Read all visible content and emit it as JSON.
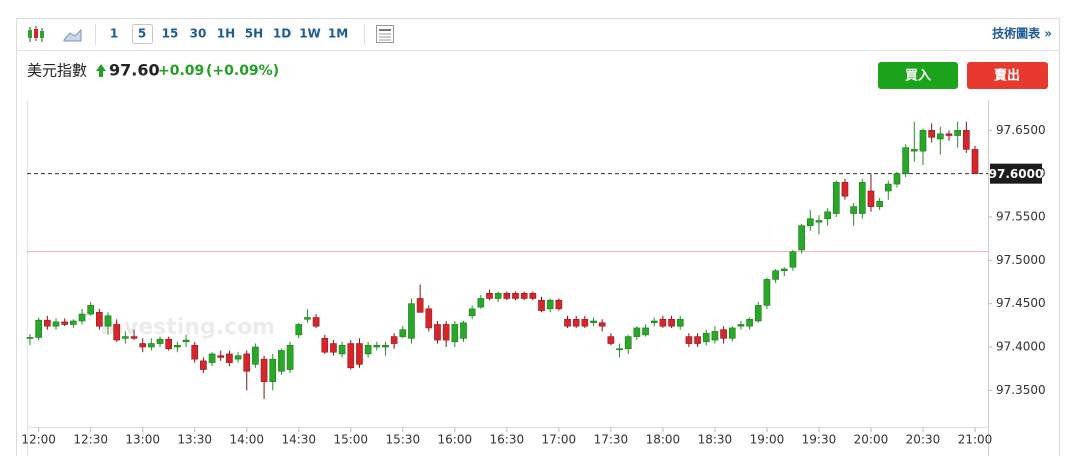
{
  "toolbar": {
    "intervals": [
      "1",
      "5",
      "15",
      "30",
      "1H",
      "5H",
      "1D",
      "1W",
      "1M"
    ],
    "selected_interval": "5",
    "link": "技術圖表 »"
  },
  "header": {
    "name": "美元指數",
    "price": "97.60",
    "change": "+0.09",
    "change_percent": "(+0.09%)"
  },
  "buttons": {
    "buy": "買入",
    "sell": "賣出"
  },
  "chart_data": {
    "type": "candlestick",
    "watermark": "Investing.com",
    "up_color": "#27a827",
    "down_color": "#d7262b",
    "ylim": [
      97.31,
      97.685
    ],
    "yticks": [
      {
        "value": 97.35,
        "label": "97.3500"
      },
      {
        "value": 97.4,
        "label": "97.4000"
      },
      {
        "value": 97.45,
        "label": "97.4500"
      },
      {
        "value": 97.5,
        "label": "97.5000"
      },
      {
        "value": 97.55,
        "label": "97.5500"
      },
      {
        "value": 97.6,
        "label": "97.6000"
      },
      {
        "value": 97.65,
        "label": "97.6500"
      }
    ],
    "current_price": {
      "value": 97.6,
      "label": "97.6000"
    },
    "reference_line": 97.51,
    "grid": false,
    "xticks": [
      "12:00",
      "12:30",
      "13:00",
      "13:30",
      "14:00",
      "14:30",
      "15:00",
      "15:30",
      "16:00",
      "16:30",
      "17:00",
      "17:30",
      "18:00",
      "18:30",
      "19:00",
      "19:30",
      "20:00",
      "20:30",
      "21:00"
    ],
    "x": [
      "11:55",
      "12:00",
      "12:05",
      "12:10",
      "12:15",
      "12:20",
      "12:25",
      "12:30",
      "12:35",
      "12:40",
      "12:45",
      "12:50",
      "12:55",
      "13:00",
      "13:05",
      "13:10",
      "13:15",
      "13:20",
      "13:25",
      "13:30",
      "13:35",
      "13:40",
      "13:45",
      "13:50",
      "13:55",
      "14:00",
      "14:05",
      "14:10",
      "14:15",
      "14:20",
      "14:25",
      "14:30",
      "14:35",
      "14:40",
      "14:45",
      "14:50",
      "14:55",
      "15:00",
      "15:05",
      "15:10",
      "15:15",
      "15:20",
      "15:25",
      "15:30",
      "15:35",
      "15:40",
      "15:45",
      "15:50",
      "15:55",
      "16:00",
      "16:05",
      "16:10",
      "16:15",
      "16:20",
      "16:25",
      "16:30",
      "16:35",
      "16:40",
      "16:45",
      "16:50",
      "16:55",
      "17:00",
      "17:05",
      "17:10",
      "17:15",
      "17:20",
      "17:25",
      "17:30",
      "17:35",
      "17:40",
      "17:45",
      "17:50",
      "17:55",
      "18:00",
      "18:05",
      "18:10",
      "18:15",
      "18:20",
      "18:25",
      "18:30",
      "18:35",
      "18:40",
      "18:45",
      "18:50",
      "18:55",
      "19:00",
      "19:05",
      "19:10",
      "19:15",
      "19:20",
      "19:25",
      "19:30",
      "19:35",
      "19:40",
      "19:45",
      "19:50",
      "19:55",
      "20:00",
      "20:05",
      "20:10",
      "20:15",
      "20:20",
      "20:25",
      "20:30",
      "20:35",
      "20:40",
      "20:45",
      "20:50",
      "20:55",
      "21:00"
    ],
    "candles": [
      [
        97.41,
        97.415,
        97.402,
        97.411
      ],
      [
        97.411,
        97.434,
        97.408,
        97.431
      ],
      [
        97.431,
        97.436,
        97.42,
        97.424
      ],
      [
        97.424,
        97.433,
        97.42,
        97.429
      ],
      [
        97.429,
        97.433,
        97.424,
        97.426
      ],
      [
        97.426,
        97.432,
        97.422,
        97.43
      ],
      [
        97.43,
        97.444,
        97.426,
        97.438
      ],
      [
        97.438,
        97.452,
        97.436,
        97.448
      ],
      [
        97.44,
        97.444,
        97.42,
        97.424
      ],
      [
        97.424,
        97.44,
        97.414,
        97.436
      ],
      [
        97.426,
        97.432,
        97.406,
        97.408
      ],
      [
        97.41,
        97.418,
        97.404,
        97.412
      ],
      [
        97.412,
        97.42,
        97.408,
        97.41
      ],
      [
        97.404,
        97.41,
        97.394,
        97.4
      ],
      [
        97.4,
        97.41,
        97.396,
        97.404
      ],
      [
        97.404,
        97.412,
        97.4,
        97.409
      ],
      [
        97.409,
        97.412,
        97.396,
        97.398
      ],
      [
        97.4,
        97.406,
        97.394,
        97.402
      ],
      [
        97.406,
        97.414,
        97.4,
        97.408
      ],
      [
        97.402,
        97.406,
        97.382,
        97.386
      ],
      [
        97.384,
        97.388,
        97.37,
        97.374
      ],
      [
        97.382,
        97.394,
        97.378,
        97.392
      ],
      [
        97.39,
        97.396,
        97.384,
        97.388
      ],
      [
        97.392,
        97.396,
        97.378,
        97.382
      ],
      [
        97.386,
        97.394,
        97.382,
        97.39
      ],
      [
        97.392,
        97.396,
        97.35,
        97.372
      ],
      [
        97.38,
        97.404,
        97.376,
        97.4
      ],
      [
        97.386,
        97.39,
        97.34,
        97.36
      ],
      [
        97.36,
        97.392,
        97.35,
        97.386
      ],
      [
        97.372,
        97.398,
        97.368,
        97.396
      ],
      [
        97.374,
        97.406,
        97.37,
        97.402
      ],
      [
        97.414,
        97.428,
        97.41,
        97.426
      ],
      [
        97.432,
        97.444,
        97.428,
        97.434
      ],
      [
        97.434,
        97.438,
        97.422,
        97.424
      ],
      [
        97.41,
        97.414,
        97.392,
        97.394
      ],
      [
        97.404,
        97.408,
        97.39,
        97.394
      ],
      [
        97.392,
        97.406,
        97.388,
        97.402
      ],
      [
        97.404,
        97.408,
        97.374,
        97.376
      ],
      [
        97.404,
        97.41,
        97.376,
        97.38
      ],
      [
        97.392,
        97.406,
        97.388,
        97.402
      ],
      [
        97.4,
        97.406,
        97.396,
        97.402
      ],
      [
        97.4,
        97.406,
        97.39,
        97.402
      ],
      [
        97.412,
        97.416,
        97.398,
        97.404
      ],
      [
        97.412,
        97.424,
        97.41,
        97.42
      ],
      [
        97.41,
        97.456,
        97.404,
        97.45
      ],
      [
        97.456,
        97.472,
        97.44,
        97.44
      ],
      [
        97.444,
        97.448,
        97.418,
        97.422
      ],
      [
        97.426,
        97.43,
        97.404,
        97.408
      ],
      [
        97.426,
        97.43,
        97.4,
        97.408
      ],
      [
        97.406,
        97.43,
        97.4,
        97.426
      ],
      [
        97.41,
        97.43,
        97.406,
        97.428
      ],
      [
        97.436,
        97.448,
        97.432,
        97.444
      ],
      [
        97.446,
        97.46,
        97.444,
        97.456
      ],
      [
        97.462,
        97.466,
        97.454,
        97.456
      ],
      [
        97.456,
        97.464,
        97.452,
        97.462
      ],
      [
        97.462,
        97.464,
        97.454,
        97.456
      ],
      [
        97.462,
        97.464,
        97.454,
        97.456
      ],
      [
        97.462,
        97.464,
        97.454,
        97.456
      ],
      [
        97.462,
        97.464,
        97.454,
        97.456
      ],
      [
        97.454,
        97.458,
        97.44,
        97.442
      ],
      [
        97.444,
        97.456,
        97.44,
        97.454
      ],
      [
        97.454,
        97.456,
        97.442,
        97.444
      ],
      [
        97.432,
        97.436,
        97.422,
        97.424
      ],
      [
        97.432,
        97.436,
        97.422,
        97.424
      ],
      [
        97.432,
        97.436,
        97.422,
        97.424
      ],
      [
        97.428,
        97.434,
        97.424,
        97.43
      ],
      [
        97.428,
        97.432,
        97.418,
        97.424
      ],
      [
        97.412,
        97.416,
        97.402,
        97.404
      ],
      [
        97.398,
        97.404,
        97.388,
        97.398
      ],
      [
        97.398,
        97.414,
        97.392,
        97.412
      ],
      [
        97.412,
        97.424,
        97.408,
        97.422
      ],
      [
        97.414,
        97.426,
        97.412,
        97.422
      ],
      [
        97.428,
        97.434,
        97.424,
        97.43
      ],
      [
        97.432,
        97.436,
        97.422,
        97.424
      ],
      [
        97.432,
        97.436,
        97.422,
        97.424
      ],
      [
        97.424,
        97.436,
        97.42,
        97.432
      ],
      [
        97.412,
        97.416,
        97.4,
        97.404
      ],
      [
        97.412,
        97.416,
        97.4,
        97.404
      ],
      [
        97.406,
        97.42,
        97.402,
        97.416
      ],
      [
        97.408,
        97.424,
        97.404,
        97.418
      ],
      [
        97.42,
        97.424,
        97.404,
        97.41
      ],
      [
        97.41,
        97.424,
        97.406,
        97.422
      ],
      [
        97.424,
        97.43,
        97.42,
        97.426
      ],
      [
        97.424,
        97.434,
        97.42,
        97.432
      ],
      [
        97.43,
        97.452,
        97.428,
        97.448
      ],
      [
        97.448,
        97.48,
        97.444,
        97.478
      ],
      [
        97.478,
        97.49,
        97.474,
        97.488
      ],
      [
        97.488,
        97.492,
        97.482,
        97.49
      ],
      [
        97.492,
        97.512,
        97.488,
        97.51
      ],
      [
        97.512,
        97.542,
        97.508,
        97.54
      ],
      [
        97.54,
        97.558,
        97.534,
        97.548
      ],
      [
        97.544,
        97.552,
        97.53,
        97.546
      ],
      [
        97.548,
        97.56,
        97.54,
        97.556
      ],
      [
        97.554,
        97.592,
        97.55,
        97.59
      ],
      [
        97.59,
        97.594,
        97.57,
        97.574
      ],
      [
        97.554,
        97.566,
        97.54,
        97.562
      ],
      [
        97.554,
        97.594,
        97.548,
        97.59
      ],
      [
        97.58,
        97.6,
        97.556,
        97.562
      ],
      [
        97.562,
        97.572,
        97.558,
        97.568
      ],
      [
        97.58,
        97.592,
        97.57,
        97.588
      ],
      [
        97.588,
        97.602,
        97.584,
        97.6
      ],
      [
        97.6,
        97.634,
        97.596,
        97.63
      ],
      [
        97.626,
        97.66,
        97.614,
        97.628
      ],
      [
        97.626,
        97.652,
        97.61,
        97.65
      ],
      [
        97.65,
        97.658,
        97.636,
        97.642
      ],
      [
        97.64,
        97.654,
        97.622,
        97.646
      ],
      [
        97.646,
        97.65,
        97.638,
        97.644
      ],
      [
        97.644,
        97.66,
        97.63,
        97.65
      ],
      [
        97.65,
        97.66,
        97.624,
        97.628
      ],
      [
        97.628,
        97.632,
        97.6,
        97.6
      ]
    ]
  }
}
